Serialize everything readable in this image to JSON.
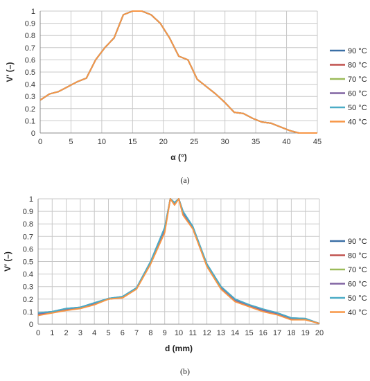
{
  "captions": [
    "(a)",
    "(b)"
  ],
  "chart_data": [
    {
      "type": "line",
      "xlabel": "α (°)",
      "ylabel": "V′ (–)",
      "xlim": [
        0,
        45
      ],
      "ylim": [
        0,
        1
      ],
      "xticks": [
        0,
        5,
        10,
        15,
        20,
        25,
        30,
        35,
        40,
        45
      ],
      "yticks": [
        0,
        0.1,
        0.2,
        0.3,
        0.4,
        0.5,
        0.6,
        0.7,
        0.8,
        0.9,
        1
      ],
      "ytick_labels": [
        "0",
        "0.1",
        "0.2",
        "0.3",
        "0.4",
        "0.5",
        "0.6",
        "0.7",
        "0.8",
        "0.9",
        "1"
      ],
      "grid": true,
      "legend_position": "right",
      "x": [
        0,
        1.5,
        3,
        4.5,
        6,
        7.5,
        9,
        10.5,
        12,
        13.5,
        15,
        16.5,
        18,
        19.5,
        21,
        22.5,
        24,
        25.5,
        27,
        28.5,
        30,
        31.5,
        33,
        34.5,
        36,
        37.5,
        39,
        40.5,
        42,
        43.5,
        45
      ],
      "series": [
        {
          "name": "90 °C",
          "color": "#3a6fa5",
          "values": [
            0.27,
            0.32,
            0.34,
            0.38,
            0.42,
            0.45,
            0.6,
            0.7,
            0.78,
            0.97,
            1.0,
            1.0,
            0.97,
            0.9,
            0.78,
            0.63,
            0.6,
            0.44,
            0.38,
            0.32,
            0.25,
            0.17,
            0.16,
            0.12,
            0.09,
            0.08,
            0.05,
            0.02,
            0.0,
            0.0,
            0.0
          ]
        },
        {
          "name": "80 °C",
          "color": "#c0504d",
          "values": [
            0.27,
            0.32,
            0.34,
            0.38,
            0.42,
            0.45,
            0.6,
            0.7,
            0.78,
            0.97,
            1.0,
            1.0,
            0.97,
            0.9,
            0.78,
            0.63,
            0.6,
            0.44,
            0.38,
            0.32,
            0.25,
            0.17,
            0.16,
            0.12,
            0.09,
            0.08,
            0.05,
            0.02,
            0.0,
            0.0,
            0.0
          ]
        },
        {
          "name": "70 °C",
          "color": "#9bbb59",
          "values": [
            0.27,
            0.32,
            0.34,
            0.38,
            0.42,
            0.45,
            0.6,
            0.7,
            0.78,
            0.97,
            1.0,
            1.0,
            0.97,
            0.9,
            0.78,
            0.63,
            0.6,
            0.44,
            0.38,
            0.32,
            0.25,
            0.17,
            0.16,
            0.12,
            0.09,
            0.08,
            0.05,
            0.02,
            0.0,
            0.0,
            0.0
          ]
        },
        {
          "name": "60 °C",
          "color": "#8064a2",
          "values": [
            0.27,
            0.32,
            0.34,
            0.38,
            0.42,
            0.45,
            0.6,
            0.7,
            0.78,
            0.97,
            1.0,
            1.0,
            0.97,
            0.9,
            0.78,
            0.63,
            0.6,
            0.44,
            0.38,
            0.32,
            0.25,
            0.17,
            0.16,
            0.12,
            0.09,
            0.08,
            0.05,
            0.02,
            0.0,
            0.0,
            0.0
          ]
        },
        {
          "name": "50 °C",
          "color": "#4bacc6",
          "values": [
            0.27,
            0.32,
            0.34,
            0.38,
            0.42,
            0.45,
            0.6,
            0.7,
            0.78,
            0.97,
            1.0,
            1.0,
            0.97,
            0.9,
            0.78,
            0.63,
            0.6,
            0.44,
            0.38,
            0.32,
            0.25,
            0.17,
            0.16,
            0.12,
            0.09,
            0.08,
            0.05,
            0.02,
            0.0,
            0.0,
            0.0
          ]
        },
        {
          "name": "40 °C",
          "color": "#f79646",
          "values": [
            0.27,
            0.32,
            0.34,
            0.38,
            0.42,
            0.45,
            0.6,
            0.7,
            0.78,
            0.97,
            1.0,
            1.0,
            0.97,
            0.9,
            0.78,
            0.63,
            0.6,
            0.44,
            0.38,
            0.32,
            0.25,
            0.17,
            0.16,
            0.12,
            0.09,
            0.08,
            0.05,
            0.02,
            0.0,
            0.0,
            0.0
          ]
        }
      ]
    },
    {
      "type": "line",
      "xlabel": "d (mm)",
      "ylabel": "V′ (–)",
      "xlim": [
        0,
        20
      ],
      "ylim": [
        0,
        1
      ],
      "xticks": [
        0,
        1,
        2,
        3,
        4,
        5,
        6,
        7,
        8,
        9,
        10,
        11,
        12,
        13,
        14,
        15,
        16,
        17,
        18,
        19,
        20
      ],
      "yticks": [
        0,
        0.1,
        0.2,
        0.3,
        0.4,
        0.5,
        0.6,
        0.7,
        0.8,
        0.9,
        1
      ],
      "ytick_labels": [
        "0",
        "0.1",
        "0.2",
        "0.3",
        "0.4",
        "0.5",
        "0.6",
        "0.7",
        "0.8",
        "0.9",
        "1"
      ],
      "grid": true,
      "legend_position": "right",
      "x": [
        0,
        1,
        2,
        3,
        4,
        5,
        6,
        7,
        8,
        9,
        9.4,
        9.7,
        10,
        10.3,
        11,
        12,
        13,
        14,
        15,
        16,
        17,
        18,
        19,
        20
      ],
      "series": [
        {
          "name": "90 °C",
          "color": "#3a6fa5",
          "values": [
            0.09,
            0.1,
            0.125,
            0.135,
            0.17,
            0.205,
            0.22,
            0.29,
            0.5,
            0.77,
            1.0,
            0.97,
            1.0,
            0.9,
            0.77,
            0.48,
            0.3,
            0.2,
            0.155,
            0.12,
            0.09,
            0.05,
            0.045,
            0.005
          ]
        },
        {
          "name": "80 °C",
          "color": "#c0504d",
          "values": [
            0.08,
            0.095,
            0.12,
            0.13,
            0.165,
            0.2,
            0.215,
            0.285,
            0.49,
            0.75,
            1.0,
            0.96,
            1.0,
            0.89,
            0.77,
            0.47,
            0.29,
            0.19,
            0.145,
            0.11,
            0.08,
            0.045,
            0.04,
            0.005
          ]
        },
        {
          "name": "70 °C",
          "color": "#9bbb59",
          "values": [
            0.08,
            0.095,
            0.12,
            0.13,
            0.165,
            0.2,
            0.215,
            0.285,
            0.49,
            0.75,
            1.0,
            0.96,
            1.0,
            0.89,
            0.77,
            0.47,
            0.29,
            0.19,
            0.145,
            0.11,
            0.08,
            0.045,
            0.04,
            0.005
          ]
        },
        {
          "name": "60 °C",
          "color": "#8064a2",
          "values": [
            0.08,
            0.095,
            0.12,
            0.13,
            0.165,
            0.2,
            0.215,
            0.285,
            0.49,
            0.75,
            1.0,
            0.96,
            1.0,
            0.89,
            0.77,
            0.47,
            0.29,
            0.19,
            0.145,
            0.11,
            0.08,
            0.045,
            0.04,
            0.005
          ]
        },
        {
          "name": "50 °C",
          "color": "#4bacc6",
          "values": [
            0.09,
            0.1,
            0.125,
            0.135,
            0.17,
            0.205,
            0.22,
            0.29,
            0.5,
            0.77,
            1.0,
            0.97,
            1.0,
            0.9,
            0.78,
            0.48,
            0.3,
            0.2,
            0.155,
            0.12,
            0.09,
            0.05,
            0.045,
            0.005
          ]
        },
        {
          "name": "40 °C",
          "color": "#f79646",
          "values": [
            0.07,
            0.09,
            0.11,
            0.125,
            0.155,
            0.2,
            0.21,
            0.28,
            0.48,
            0.73,
            1.0,
            0.95,
            1.0,
            0.87,
            0.76,
            0.46,
            0.28,
            0.18,
            0.14,
            0.1,
            0.075,
            0.035,
            0.035,
            0.005
          ]
        }
      ]
    }
  ]
}
